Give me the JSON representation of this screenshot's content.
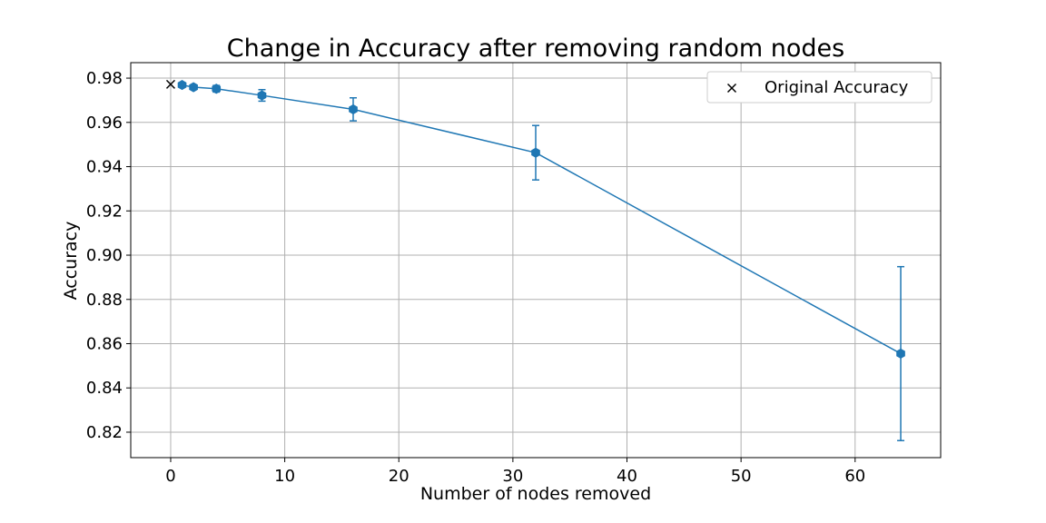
{
  "chart_data": {
    "type": "line",
    "title": "Change in Accuracy after removing random nodes",
    "xlabel": "Number of nodes removed",
    "ylabel": "Accuracy",
    "xlim": [
      -3.5,
      67.5
    ],
    "ylim": [
      0.8085,
      0.987
    ],
    "x_ticks": [
      0,
      10,
      20,
      30,
      40,
      50,
      60
    ],
    "x_tick_labels": [
      "0",
      "10",
      "20",
      "30",
      "40",
      "50",
      "60"
    ],
    "y_ticks": [
      0.82,
      0.84,
      0.86,
      0.88,
      0.9,
      0.92,
      0.94,
      0.96,
      0.98
    ],
    "y_tick_labels": [
      "0.82",
      "0.84",
      "0.86",
      "0.88",
      "0.90",
      "0.92",
      "0.94",
      "0.96",
      "0.98"
    ],
    "grid": true,
    "legend_position": "top-right",
    "series": [
      {
        "style": "line-with-errorbars",
        "color": "#1f77b4",
        "x": [
          1,
          2,
          4,
          8,
          16,
          32,
          64
        ],
        "y": [
          0.9769,
          0.9759,
          0.9752,
          0.9722,
          0.9659,
          0.9463,
          0.8555
        ],
        "err": [
          0.0005,
          0.0008,
          0.0015,
          0.0026,
          0.0052,
          0.0123,
          0.0393
        ]
      },
      {
        "name": "Original Accuracy",
        "style": "marker-x",
        "color": "#000000",
        "x": [
          0
        ],
        "y": [
          0.9772
        ]
      }
    ]
  }
}
